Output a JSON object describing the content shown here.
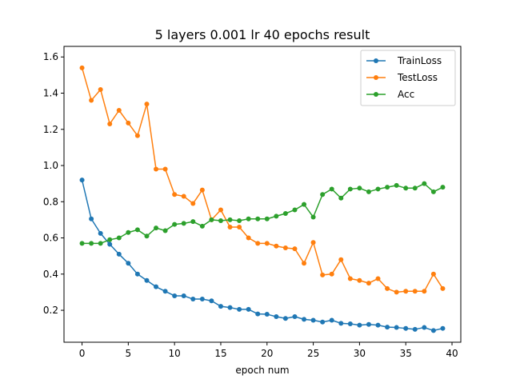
{
  "chart_data": {
    "type": "line",
    "title": "5 layers 0.001 lr 40 epochs result",
    "xlabel": "epoch num",
    "ylabel": "",
    "xlim": [
      -1.95,
      40.95
    ],
    "ylim": [
      0.0235,
      1.6585
    ],
    "x_ticks": [
      0,
      5,
      10,
      15,
      20,
      25,
      30,
      35,
      40
    ],
    "y_ticks": [
      0.2,
      0.4,
      0.6,
      0.8,
      1.0,
      1.2,
      1.4,
      1.6
    ],
    "y_tick_labels": [
      "0.2",
      "0.4",
      "0.6",
      "0.8",
      "1.0",
      "1.2",
      "1.4",
      "1.6"
    ],
    "grid": false,
    "legend_position": "upper right",
    "x": [
      0,
      1,
      2,
      3,
      4,
      5,
      6,
      7,
      8,
      9,
      10,
      11,
      12,
      13,
      14,
      15,
      16,
      17,
      18,
      19,
      20,
      21,
      22,
      23,
      24,
      25,
      26,
      27,
      28,
      29,
      30,
      31,
      32,
      33,
      34,
      35,
      36,
      37,
      38,
      39
    ],
    "series": [
      {
        "name": "TrainLoss",
        "color": "#1f77b4",
        "values": [
          0.92,
          0.705,
          0.625,
          0.565,
          0.51,
          0.46,
          0.4,
          0.365,
          0.33,
          0.305,
          0.28,
          0.28,
          0.262,
          0.262,
          0.252,
          0.222,
          0.215,
          0.205,
          0.205,
          0.18,
          0.178,
          0.165,
          0.155,
          0.165,
          0.15,
          0.145,
          0.135,
          0.145,
          0.128,
          0.125,
          0.118,
          0.122,
          0.118,
          0.107,
          0.105,
          0.1,
          0.095,
          0.105,
          0.088,
          0.1
        ]
      },
      {
        "name": "TestLoss",
        "color": "#ff7f0e",
        "values": [
          1.54,
          1.36,
          1.42,
          1.23,
          1.305,
          1.235,
          1.165,
          1.34,
          0.98,
          0.98,
          0.84,
          0.83,
          0.79,
          0.865,
          0.7,
          0.755,
          0.66,
          0.66,
          0.6,
          0.57,
          0.57,
          0.555,
          0.545,
          0.54,
          0.46,
          0.575,
          0.395,
          0.4,
          0.48,
          0.375,
          0.365,
          0.35,
          0.375,
          0.32,
          0.3,
          0.305,
          0.305,
          0.305,
          0.4,
          0.32
        ]
      },
      {
        "name": "Acc",
        "color": "#2ca02c",
        "values": [
          0.57,
          0.57,
          0.57,
          0.59,
          0.6,
          0.63,
          0.645,
          0.61,
          0.655,
          0.64,
          0.675,
          0.68,
          0.69,
          0.665,
          0.7,
          0.695,
          0.7,
          0.695,
          0.705,
          0.705,
          0.705,
          0.72,
          0.735,
          0.755,
          0.785,
          0.715,
          0.84,
          0.87,
          0.82,
          0.87,
          0.875,
          0.855,
          0.87,
          0.88,
          0.89,
          0.875,
          0.875,
          0.9,
          0.855,
          0.88
        ]
      }
    ]
  }
}
